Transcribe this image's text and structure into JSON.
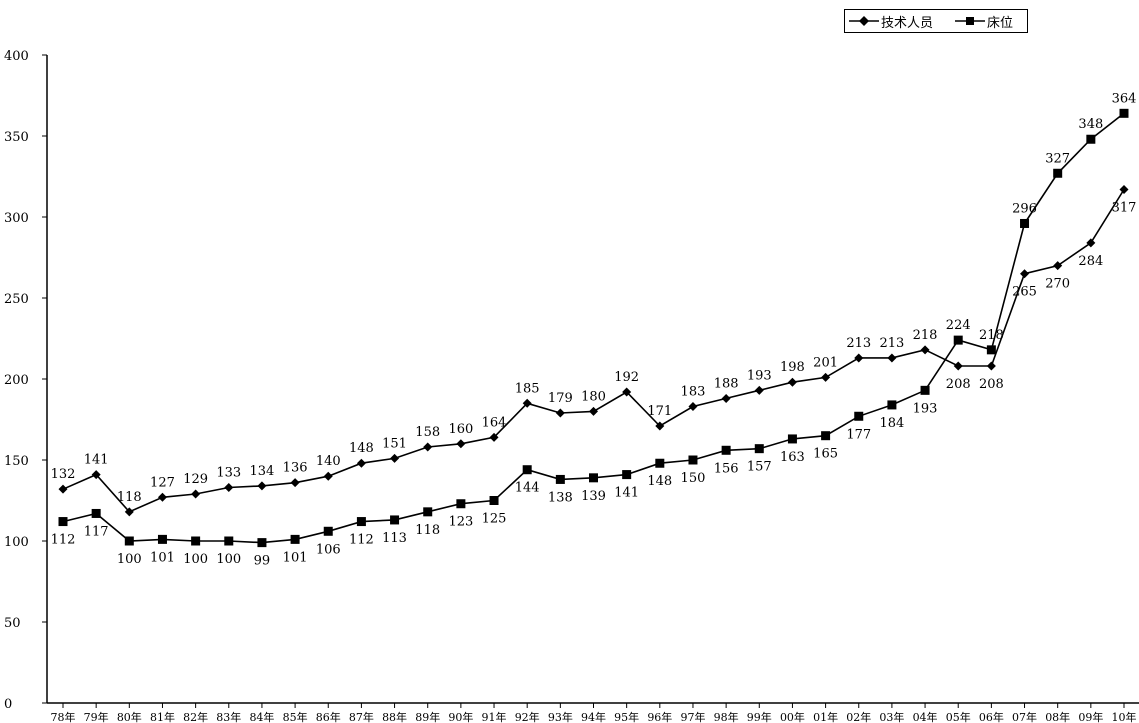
{
  "chart_data": {
    "type": "line",
    "title": "",
    "xlabel": "",
    "ylabel": "",
    "ylim": [
      0,
      400
    ],
    "yticks": [
      0,
      50,
      100,
      150,
      200,
      250,
      300,
      350,
      400
    ],
    "grid": false,
    "legend_position": "top-right",
    "categories": [
      "78年",
      "79年",
      "80年",
      "81年",
      "82年",
      "83年",
      "84年",
      "85年",
      "86年",
      "87年",
      "88年",
      "89年",
      "90年",
      "91年",
      "92年",
      "93年",
      "94年",
      "95年",
      "96年",
      "97年",
      "98年",
      "99年",
      "00年",
      "01年",
      "02年",
      "03年",
      "04年",
      "05年",
      "06年",
      "07年",
      "08年",
      "09年",
      "10年"
    ],
    "series": [
      {
        "name": "技术人员",
        "marker": "diamond",
        "color": "#000000",
        "values": [
          132,
          141,
          118,
          127,
          129,
          133,
          134,
          136,
          140,
          148,
          151,
          158,
          160,
          164,
          185,
          179,
          180,
          192,
          171,
          183,
          188,
          193,
          198,
          201,
          213,
          213,
          218,
          208,
          208,
          265,
          270,
          284,
          317
        ]
      },
      {
        "name": "床位",
        "marker": "square",
        "color": "#000000",
        "values": [
          112,
          117,
          100,
          101,
          100,
          100,
          99,
          101,
          106,
          112,
          113,
          118,
          123,
          125,
          144,
          138,
          139,
          141,
          148,
          150,
          156,
          157,
          163,
          165,
          177,
          184,
          193,
          224,
          218,
          296,
          327,
          348,
          364
        ]
      }
    ]
  }
}
